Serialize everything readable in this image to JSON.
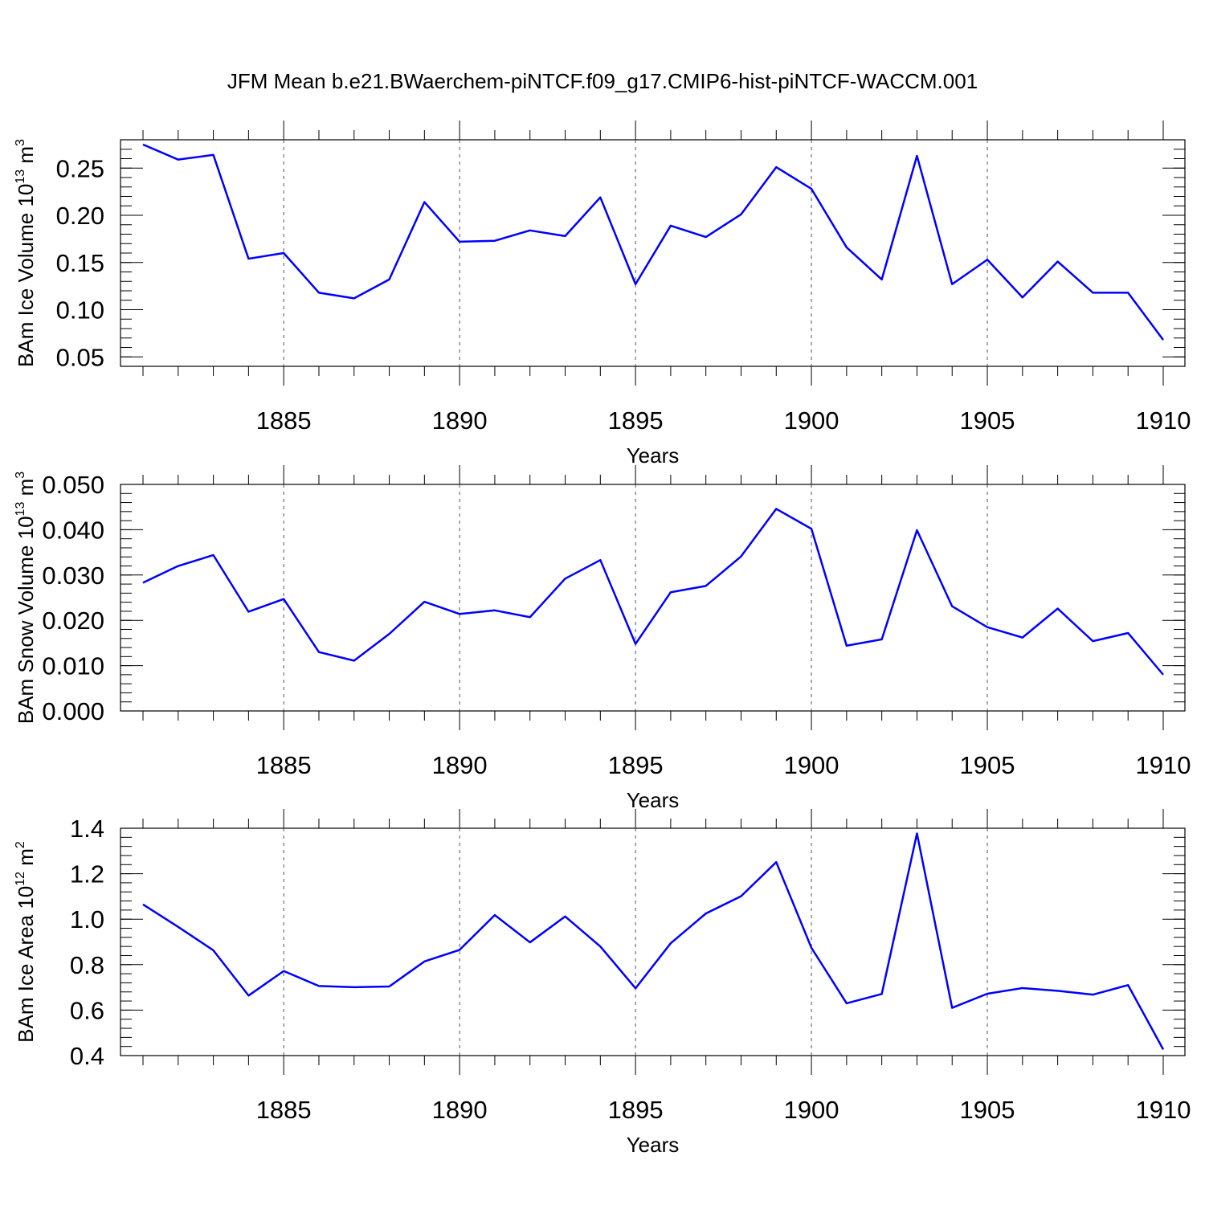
{
  "page_title": "JFM Mean b.e21.BWaerchem-piNTCF.f09_g17.CMIP6-hist-piNTCF-WACCM.001",
  "colors": {
    "line": "#0000ff",
    "frame": "#000000"
  },
  "chart_data": [
    {
      "type": "line",
      "title": "JFM Mean b.e21.BWaerchem-piNTCF.f09_g17.CMIP6-hist-piNTCF-WACCM.001",
      "xlabel": "Years",
      "ylabel": {
        "text": "BAm Ice Volume 10",
        "sup": "13",
        "unit": " m",
        "unit_sup": "3"
      },
      "xlim": [
        1881,
        1910
      ],
      "ylim": [
        0.04,
        0.28
      ],
      "xticks": [
        1885,
        1890,
        1895,
        1900,
        1905,
        1910
      ],
      "xtick_labels": [
        "1885",
        "1890",
        "1895",
        "1900",
        "1905",
        "1910"
      ],
      "yticks": [
        0.05,
        0.1,
        0.15,
        0.2,
        0.25
      ],
      "ytick_labels": [
        "0.05",
        "0.10",
        "0.15",
        "0.20",
        "0.25"
      ],
      "grid": "dashed vertical lines at labeled x ticks",
      "x": [
        1881,
        1882,
        1883,
        1884,
        1885,
        1886,
        1887,
        1888,
        1889,
        1890,
        1891,
        1892,
        1893,
        1894,
        1895,
        1896,
        1897,
        1898,
        1899,
        1900,
        1901,
        1902,
        1903,
        1904,
        1905,
        1906,
        1907,
        1908,
        1909,
        1910
      ],
      "series": [
        {
          "values": [
            0.275,
            0.259,
            0.264,
            0.154,
            0.16,
            0.118,
            0.112,
            0.132,
            0.214,
            0.172,
            0.173,
            0.184,
            0.178,
            0.219,
            0.127,
            0.189,
            0.177,
            0.201,
            0.251,
            0.228,
            0.166,
            0.132,
            0.263,
            0.127,
            0.153,
            0.113,
            0.151,
            0.118,
            0.118,
            0.068
          ]
        }
      ]
    },
    {
      "type": "line",
      "xlabel": "Years",
      "ylabel": {
        "text": "BAm Snow Volume 10",
        "sup": "13",
        "unit": " m",
        "unit_sup": "3"
      },
      "xlim": [
        1881,
        1910
      ],
      "ylim": [
        0.0,
        0.05
      ],
      "xticks": [
        1885,
        1890,
        1895,
        1900,
        1905,
        1910
      ],
      "xtick_labels": [
        "1885",
        "1890",
        "1895",
        "1900",
        "1905",
        "1910"
      ],
      "yticks": [
        0.0,
        0.01,
        0.02,
        0.03,
        0.04,
        0.05
      ],
      "ytick_labels": [
        "0.000",
        "0.010",
        "0.020",
        "0.030",
        "0.040",
        "0.050"
      ],
      "grid": "dashed vertical lines at labeled x ticks",
      "x": [
        1881,
        1882,
        1883,
        1884,
        1885,
        1886,
        1887,
        1888,
        1889,
        1890,
        1891,
        1892,
        1893,
        1894,
        1895,
        1896,
        1897,
        1898,
        1899,
        1900,
        1901,
        1902,
        1903,
        1904,
        1905,
        1906,
        1907,
        1908,
        1909,
        1910
      ],
      "series": [
        {
          "values": [
            0.0283,
            0.032,
            0.0344,
            0.0219,
            0.0247,
            0.013,
            0.0111,
            0.017,
            0.0241,
            0.0214,
            0.0222,
            0.0207,
            0.0292,
            0.0333,
            0.0148,
            0.0262,
            0.0276,
            0.0341,
            0.0446,
            0.0402,
            0.0144,
            0.0158,
            0.0399,
            0.0231,
            0.0185,
            0.0162,
            0.0226,
            0.0154,
            0.0172,
            0.008
          ]
        }
      ]
    },
    {
      "type": "line",
      "xlabel": "Years",
      "ylabel": {
        "text": "BAm Ice Area 10",
        "sup": "12",
        "unit": " m",
        "unit_sup": "2"
      },
      "xlim": [
        1881,
        1910
      ],
      "ylim": [
        0.4,
        1.4
      ],
      "xticks": [
        1885,
        1890,
        1895,
        1900,
        1905,
        1910
      ],
      "xtick_labels": [
        "1885",
        "1890",
        "1895",
        "1900",
        "1905",
        "1910"
      ],
      "yticks": [
        0.4,
        0.6,
        0.8,
        1.0,
        1.2,
        1.4
      ],
      "ytick_labels": [
        "0.4",
        "0.6",
        "0.8",
        "1.0",
        "1.2",
        "1.4"
      ],
      "grid": "dashed vertical lines at labeled x ticks",
      "x": [
        1881,
        1882,
        1883,
        1884,
        1885,
        1886,
        1887,
        1888,
        1889,
        1890,
        1891,
        1892,
        1893,
        1894,
        1895,
        1896,
        1897,
        1898,
        1899,
        1900,
        1901,
        1902,
        1903,
        1904,
        1905,
        1906,
        1907,
        1908,
        1909,
        1910
      ],
      "series": [
        {
          "values": [
            1.065,
            0.966,
            0.863,
            0.664,
            0.772,
            0.706,
            0.701,
            0.704,
            0.814,
            0.865,
            1.018,
            0.898,
            1.012,
            0.88,
            0.696,
            0.894,
            1.025,
            1.101,
            1.251,
            0.874,
            0.63,
            0.671,
            1.377,
            0.61,
            0.672,
            0.697,
            0.685,
            0.668,
            0.71,
            0.427
          ]
        }
      ]
    }
  ]
}
